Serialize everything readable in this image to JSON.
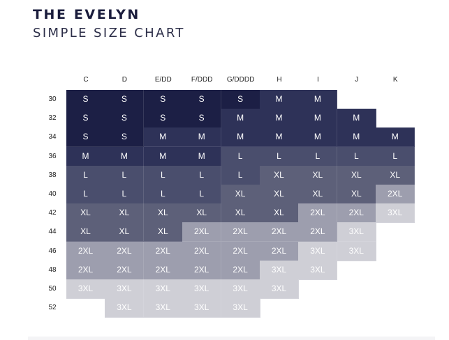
{
  "header": {
    "title": "THE EVELYN",
    "subtitle": "SIMPLE SIZE CHART"
  },
  "chart_data": {
    "type": "table",
    "columns": [
      "C",
      "D",
      "E/DD",
      "F/DDD",
      "G/DDDD",
      "H",
      "I",
      "J",
      "K"
    ],
    "rows": [
      {
        "band": "30",
        "cells": [
          "S",
          "S",
          "S",
          "S",
          "S",
          "M",
          "M",
          "",
          ""
        ]
      },
      {
        "band": "32",
        "cells": [
          "S",
          "S",
          "S",
          "S",
          "M",
          "M",
          "M",
          "M",
          ""
        ]
      },
      {
        "band": "34",
        "cells": [
          "S",
          "S",
          "M",
          "M",
          "M",
          "M",
          "M",
          "M",
          "M"
        ]
      },
      {
        "band": "36",
        "cells": [
          "M",
          "M",
          "M",
          "M",
          "L",
          "L",
          "L",
          "L",
          "L"
        ]
      },
      {
        "band": "38",
        "cells": [
          "L",
          "L",
          "L",
          "L",
          "L",
          "XL",
          "XL",
          "XL",
          "XL"
        ]
      },
      {
        "band": "40",
        "cells": [
          "L",
          "L",
          "L",
          "L",
          "XL",
          "XL",
          "XL",
          "XL",
          "2XL"
        ]
      },
      {
        "band": "42",
        "cells": [
          "XL",
          "XL",
          "XL",
          "XL",
          "XL",
          "XL",
          "2XL",
          "2XL",
          "3XL"
        ]
      },
      {
        "band": "44",
        "cells": [
          "XL",
          "XL",
          "XL",
          "2XL",
          "2XL",
          "2XL",
          "2XL",
          "3XL",
          ""
        ]
      },
      {
        "band": "46",
        "cells": [
          "2XL",
          "2XL",
          "2XL",
          "2XL",
          "2XL",
          "2XL",
          "3XL",
          "3XL",
          ""
        ]
      },
      {
        "band": "48",
        "cells": [
          "2XL",
          "2XL",
          "2XL",
          "2XL",
          "2XL",
          "3XL",
          "3XL",
          "",
          ""
        ]
      },
      {
        "band": "50",
        "cells": [
          "3XL",
          "3XL",
          "3XL",
          "3XL",
          "3XL",
          "3XL",
          "",
          "",
          ""
        ]
      },
      {
        "band": "52",
        "cells": [
          "",
          "3XL",
          "3XL",
          "3XL",
          "3XL",
          "",
          "",
          "",
          ""
        ]
      }
    ],
    "size_colors": {
      "S": "#1c1f45",
      "M": "#2e3258",
      "L": "#4a4e6d",
      "XL": "#5d6079",
      "2XL": "#9d9eae",
      "3XL": "#cfcfd6"
    }
  }
}
